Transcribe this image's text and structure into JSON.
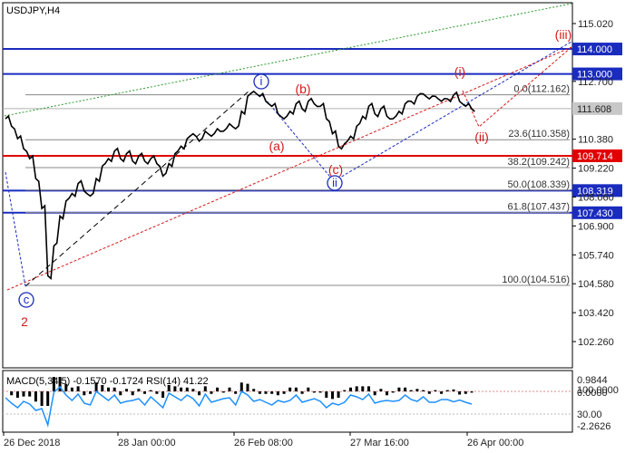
{
  "chart_data": {
    "type": "line",
    "title": "USDJPY,H4",
    "price_axis": {
      "ticks": [
        "115.020",
        "112.700",
        "110.380",
        "109.220",
        "108.060",
        "106.900",
        "105.740",
        "104.580",
        "103.420",
        "102.260"
      ],
      "tick_values": [
        115.02,
        112.7,
        110.38,
        109.22,
        108.06,
        106.9,
        105.74,
        104.58,
        103.42,
        102.26
      ],
      "ylim": [
        101.5,
        116.0
      ]
    },
    "time_axis": {
      "labels": [
        "26 Dec 2018",
        "28 Jan 00:00",
        "26 Feb 08:00",
        "27 Mar 16:00",
        "26 Apr 00:00"
      ]
    },
    "series": [
      {
        "values": [
          111.2,
          110.9,
          110.4,
          110.0,
          109.6,
          108.8,
          107.6,
          104.9,
          106.1,
          107.3,
          107.9,
          108.2,
          108.6,
          108.3,
          108.1,
          108.8,
          109.3,
          109.6,
          109.9,
          109.6,
          109.8,
          109.5,
          109.7,
          109.5,
          109.6,
          109.4,
          108.9,
          109.4,
          109.8,
          110.1,
          110.4,
          110.6,
          110.3,
          110.7,
          110.5,
          110.8,
          110.7,
          111.0,
          110.8,
          111.5,
          112.1,
          112.3,
          112.1,
          111.9,
          111.7,
          111.4,
          111.2,
          111.5,
          111.8,
          111.6,
          111.9,
          111.8,
          111.7,
          111.2,
          110.6,
          110.1,
          110.2,
          110.5,
          110.9,
          111.3,
          111.7,
          111.4,
          111.6,
          111.3,
          111.2,
          111.5,
          111.8,
          111.9,
          112.1,
          112.2,
          112.0,
          112.1,
          111.9,
          112.0,
          112.15,
          111.9,
          111.7,
          111.6
        ]
      }
    ],
    "price_lines": [
      {
        "value": 114.0,
        "label": "114.000",
        "kind": "blue"
      },
      {
        "value": 113.0,
        "label": "113.000",
        "kind": "blue"
      },
      {
        "value": 109.714,
        "label": "109.714",
        "kind": "red"
      },
      {
        "value": 108.319,
        "label": "108.319",
        "kind": "blue"
      },
      {
        "value": 107.43,
        "label": "107.430",
        "kind": "blue"
      }
    ],
    "current_price": {
      "value": 111.608,
      "label": "111.608"
    },
    "fibonacci": [
      {
        "text": "0.0(112.162)",
        "value": 112.162
      },
      {
        "text": "23.6(110.358)",
        "value": 110.358
      },
      {
        "text": "38.2(109.242)",
        "value": 109.242
      },
      {
        "text": "50.0(108.339)",
        "value": 108.339
      },
      {
        "text": "61.8(107.437)",
        "value": 107.437
      },
      {
        "text": "100.0(104.516)",
        "value": 104.516
      }
    ],
    "wave_labels": [
      {
        "text": "i",
        "color": "blue",
        "circled": true
      },
      {
        "text": "ii",
        "color": "blue",
        "circled": true
      },
      {
        "text": "c",
        "color": "blue",
        "circled": true
      },
      {
        "text": "2",
        "color": "red",
        "circled": false
      },
      {
        "text": "(a)",
        "color": "red",
        "circled": false
      },
      {
        "text": "(b)",
        "color": "red",
        "circled": false
      },
      {
        "text": "(c)",
        "color": "red",
        "circled": false
      },
      {
        "text": "(i)",
        "color": "red",
        "circled": false
      },
      {
        "text": "(ii)",
        "color": "red",
        "circled": false
      },
      {
        "text": "(iii)",
        "color": "red",
        "circled": false
      }
    ],
    "indicator": {
      "label": "MACD(5,34,5) -0.1570 -0.1724 RSI(14) 41.22",
      "axis_ticks": [
        "0.9844",
        "100.0000",
        "0.0000",
        "30.00",
        "-2.2626"
      ]
    },
    "colors": {
      "price": "#000000",
      "blue_level": "#1a2bbf",
      "red_level": "#e00000",
      "current_price_box": "#c8c8c8",
      "rsi": "#1e90ff",
      "upper_channel": "#2a9a2a"
    }
  }
}
